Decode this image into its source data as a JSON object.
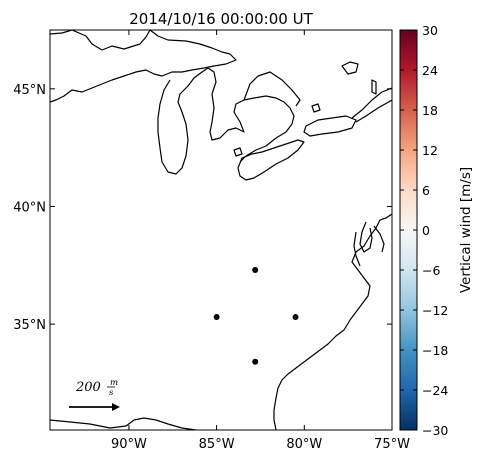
{
  "title": "2014/10/16 00:00:00 UT",
  "map": {
    "lon_range": [
      -94.5,
      -75
    ],
    "lat_range": [
      30.5,
      47.5
    ],
    "lon_ticks": [
      {
        "value": -90,
        "label": "90°W"
      },
      {
        "value": -85,
        "label": "85°W"
      },
      {
        "value": -80,
        "label": "80°W"
      },
      {
        "value": -75,
        "label": "75°W"
      }
    ],
    "lat_ticks": [
      {
        "value": 45,
        "label": "45°N"
      },
      {
        "value": 40,
        "label": "40°N"
      },
      {
        "value": 35,
        "label": "35°N"
      }
    ],
    "stations": [
      {
        "lon": -82.8,
        "lat": 37.3
      },
      {
        "lon": -85.0,
        "lat": 35.3
      },
      {
        "lon": -80.5,
        "lat": 35.3
      },
      {
        "lon": -82.8,
        "lat": 33.4
      }
    ],
    "reference_vector": {
      "text": "200",
      "unit_num": "m",
      "unit_den": "s"
    }
  },
  "colorbar": {
    "label": "Vertical wind [m/s]",
    "min": -30,
    "max": 30,
    "ticks": [
      "30",
      "24",
      "18",
      "12",
      "6",
      "0",
      "−6",
      "−12",
      "−18",
      "−24",
      "−30"
    ],
    "tick_values": [
      30,
      24,
      18,
      12,
      6,
      0,
      -6,
      -12,
      -18,
      -24,
      -30
    ],
    "colormap": "RdBu_r",
    "colors": [
      "#053061",
      "#2166ac",
      "#4393c3",
      "#92c5de",
      "#d1e5f0",
      "#f7f7f7",
      "#fddbc7",
      "#f4a582",
      "#d6604d",
      "#b2182b",
      "#67001f"
    ]
  }
}
